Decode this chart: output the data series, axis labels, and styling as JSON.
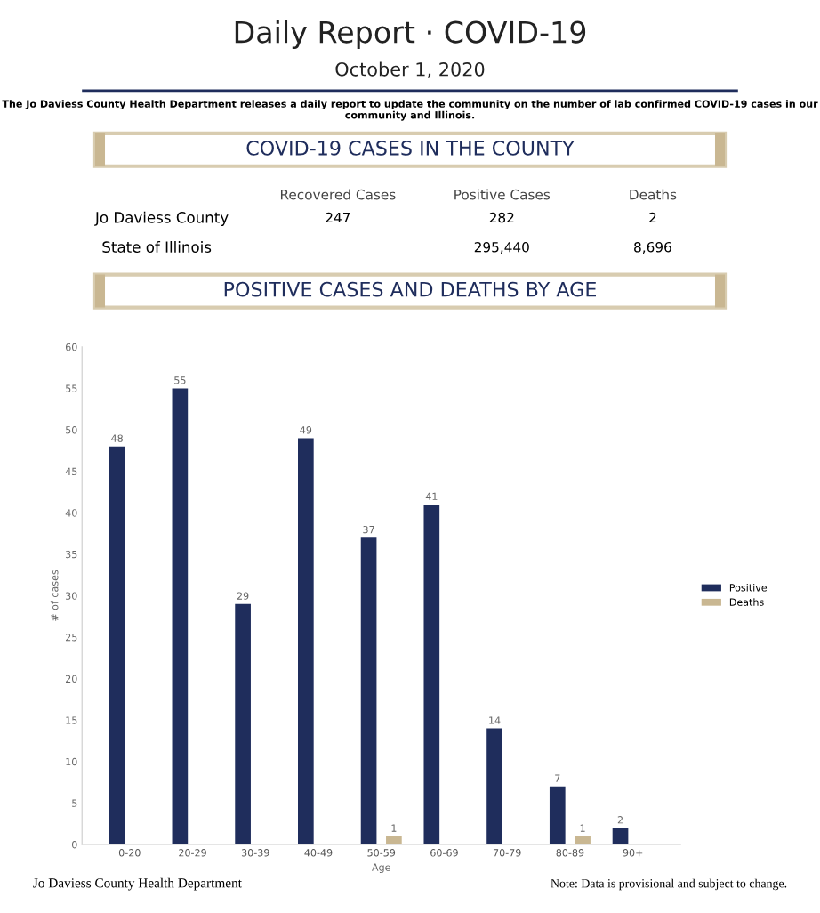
{
  "chart_data": [
    {
      "type": "other",
      "title": "Daily Report · COVID-19",
      "subtitle": "October 1, 2020",
      "annotations": [
        "The Jo Daviess County Health Department releases a daily report to update the community on the number of lab confirmed COVID-19 cases in our community and Illinois.",
        "COVID-19 CASES IN THE COUNTY",
        "Recovered Cases",
        "Positive Cases",
        "Deaths",
        "Jo Daviess County",
        "247",
        "282",
        "2",
        "State of Illinois",
        "295,440",
        "8,696",
        "POSITIVE CASES AND DEATHS BY AGE"
      ]
    },
    {
      "type": "bar",
      "categories": [
        "0-20",
        "20-29",
        "30-39",
        "40-49",
        "50-59",
        "60-69",
        "70-79",
        "80-89",
        "90+"
      ],
      "series": [
        {
          "name": "Positive",
          "color": "#1f2d5c",
          "values": [
            48,
            55,
            29,
            49,
            37,
            41,
            14,
            7,
            2
          ],
          "value_labels": [
            "48",
            "55",
            "29",
            "49",
            "37",
            "41",
            "14",
            "7",
            "2"
          ]
        },
        {
          "name": "Deaths",
          "color": "#c9b792",
          "values": [
            0,
            0,
            0,
            0,
            1,
            0,
            0,
            1,
            0
          ],
          "value_labels": [
            null,
            null,
            null,
            null,
            "1",
            null,
            null,
            "1",
            null
          ]
        }
      ],
      "ylim": [
        0,
        60
      ],
      "yticks": [
        0,
        5,
        10,
        15,
        20,
        25,
        30,
        35,
        40,
        45,
        50,
        55,
        60
      ],
      "xlabel": "Age",
      "ylabel": "# of cases",
      "legend": "right",
      "grid": false,
      "annotations": [
        "Jo Daviess County Health Department",
        "Note: Data is provisional and subject to change."
      ]
    }
  ]
}
